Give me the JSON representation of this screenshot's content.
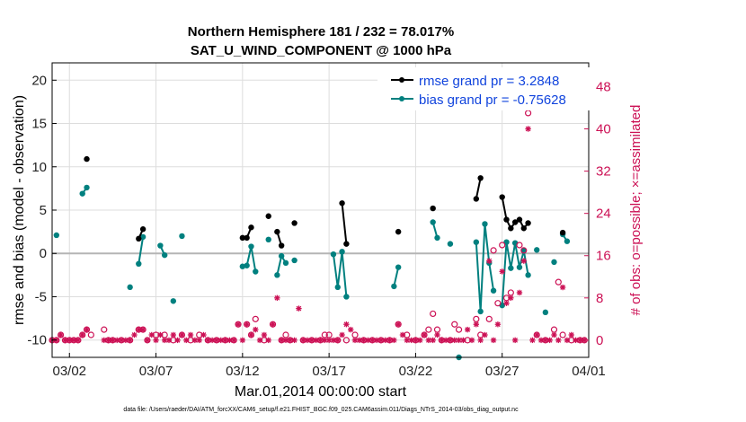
{
  "chart_data": {
    "type": "line",
    "title_line1": "Northern Hemisphere 181 / 232 = 78.017%",
    "title_line2": "SAT_U_WIND_COMPONENT @ 1000 hPa",
    "xlabel": "Mar.01,2014 00:00:00 start",
    "ylabel": "rmse and bias (model - observation)",
    "ylabel_right": "# of obs: o=possible; ×=assimilated",
    "footer": "data file: /Users/raeder/DAI/ATM_forcXX/CAM6_setup/f.e21.FHIST_BGC.f09_025.CAM6assim.011/Diags_NTrS_2014-03/obs_diag_output.nc",
    "xlim": [
      0.5,
      31.5
    ],
    "ylim": [
      -12,
      22
    ],
    "ylim_right": [
      -3.25,
      52.5
    ],
    "x_ticks": [
      1.5,
      6.5,
      11.5,
      16.5,
      21.5,
      26.5,
      31.5
    ],
    "x_tick_labels": [
      "03/02",
      "03/07",
      "03/12",
      "03/17",
      "03/22",
      "03/27",
      "04/01"
    ],
    "y_ticks": [
      -10,
      -5,
      0,
      5,
      10,
      15,
      20
    ],
    "y_ticks_right": [
      0,
      8,
      16,
      24,
      32,
      40,
      48
    ],
    "grid": true,
    "zero_line": true,
    "legend_position": "top-right",
    "colors": {
      "rmse": "#000000",
      "bias": "#00807f",
      "obs": "#cc1155",
      "grid": "#dddddd",
      "zero": "#b5b5b5",
      "legend_text": "#1144dd"
    },
    "series": [
      {
        "name": "rmse grand pr = 3.2848",
        "values": [
          [
            2.5,
            10.9
          ],
          [
            5.5,
            1.7
          ],
          [
            5.75,
            2.8
          ],
          [
            11.5,
            1.8
          ],
          [
            11.75,
            1.8
          ],
          [
            12.0,
            3.0
          ],
          [
            13.0,
            4.3
          ],
          [
            13.5,
            2.5
          ],
          [
            13.75,
            0.9
          ],
          [
            14.5,
            3.5
          ],
          [
            17.25,
            5.8
          ],
          [
            17.5,
            1.1
          ],
          [
            20.5,
            2.5
          ],
          [
            22.5,
            5.2
          ],
          [
            25.0,
            6.3
          ],
          [
            25.25,
            8.7
          ],
          [
            26.5,
            6.5
          ],
          [
            26.75,
            3.9
          ],
          [
            27.0,
            2.9
          ],
          [
            27.25,
            3.6
          ],
          [
            27.5,
            3.9
          ],
          [
            27.75,
            2.9
          ],
          [
            28.0,
            3.5
          ],
          [
            30.0,
            2.4
          ]
        ]
      },
      {
        "name": "bias grand pr = -0.75628",
        "values": [
          [
            0.75,
            2.1
          ],
          [
            2.25,
            6.9
          ],
          [
            2.5,
            7.6
          ],
          [
            5.0,
            -3.9
          ],
          [
            5.5,
            -1.2
          ],
          [
            5.75,
            1.9
          ],
          [
            6.75,
            0.9
          ],
          [
            7.0,
            -0.2
          ],
          [
            7.5,
            -5.5
          ],
          [
            8.0,
            2.0
          ],
          [
            11.5,
            -1.5
          ],
          [
            11.75,
            -1.4
          ],
          [
            12.0,
            0.8
          ],
          [
            12.25,
            -2.1
          ],
          [
            13.0,
            1.6
          ],
          [
            13.5,
            -2.5
          ],
          [
            13.75,
            -0.3
          ],
          [
            14.0,
            -1.1
          ],
          [
            14.5,
            -0.8
          ],
          [
            16.75,
            -0.1
          ],
          [
            17.0,
            -3.9
          ],
          [
            17.25,
            0.2
          ],
          [
            17.5,
            -5.0
          ],
          [
            20.25,
            -3.8
          ],
          [
            20.5,
            -1.6
          ],
          [
            22.5,
            3.6
          ],
          [
            22.75,
            1.8
          ],
          [
            23.5,
            1.1
          ],
          [
            24.0,
            -12.0
          ],
          [
            25.0,
            1.3
          ],
          [
            25.25,
            -6.7
          ],
          [
            25.5,
            3.4
          ],
          [
            25.75,
            -1.1
          ],
          [
            26.0,
            -4.3
          ],
          [
            26.5,
            -6.0
          ],
          [
            26.75,
            1.3
          ],
          [
            27.0,
            -1.7
          ],
          [
            27.25,
            1.2
          ],
          [
            27.5,
            -1.6
          ],
          [
            27.75,
            0.3
          ],
          [
            28.0,
            -2.5
          ],
          [
            28.5,
            0.4
          ],
          [
            29.0,
            -6.8
          ],
          [
            29.5,
            -1.0
          ],
          [
            30.0,
            2.2
          ],
          [
            30.25,
            1.4
          ]
        ]
      },
      {
        "name": "possible",
        "axis": "right",
        "marker": "o",
        "values": [
          [
            0.5,
            0
          ],
          [
            0.75,
            0
          ],
          [
            1.0,
            1
          ],
          [
            1.25,
            0
          ],
          [
            1.5,
            0
          ],
          [
            1.75,
            0
          ],
          [
            2.0,
            0
          ],
          [
            2.25,
            1
          ],
          [
            2.5,
            2
          ],
          [
            2.75,
            1
          ],
          [
            3.5,
            2
          ],
          [
            3.75,
            0
          ],
          [
            4.0,
            0
          ],
          [
            4.5,
            0
          ],
          [
            5.0,
            0
          ],
          [
            5.5,
            2
          ],
          [
            5.75,
            2
          ],
          [
            6.0,
            0
          ],
          [
            6.5,
            1
          ],
          [
            7.0,
            1
          ],
          [
            7.5,
            0
          ],
          [
            8.0,
            1
          ],
          [
            8.5,
            0
          ],
          [
            9.0,
            1
          ],
          [
            9.5,
            0
          ],
          [
            10.0,
            0
          ],
          [
            10.5,
            0
          ],
          [
            11.0,
            0
          ],
          [
            11.25,
            3
          ],
          [
            11.75,
            3
          ],
          [
            12.0,
            1
          ],
          [
            12.25,
            4
          ],
          [
            12.75,
            0
          ],
          [
            13.25,
            3
          ],
          [
            13.75,
            0
          ],
          [
            14.0,
            1
          ],
          [
            14.25,
            0
          ],
          [
            15.0,
            0
          ],
          [
            15.5,
            0
          ],
          [
            16.0,
            0
          ],
          [
            16.25,
            1
          ],
          [
            16.5,
            1
          ],
          [
            17.0,
            0
          ],
          [
            17.5,
            0
          ],
          [
            18.0,
            1
          ],
          [
            18.5,
            0
          ],
          [
            19.0,
            0
          ],
          [
            19.5,
            0
          ],
          [
            20.0,
            0
          ],
          [
            20.5,
            3
          ],
          [
            21.0,
            1
          ],
          [
            21.5,
            0
          ],
          [
            22.0,
            1
          ],
          [
            22.25,
            2
          ],
          [
            22.5,
            5
          ],
          [
            22.75,
            2
          ],
          [
            23.0,
            0
          ],
          [
            23.5,
            0
          ],
          [
            23.75,
            3
          ],
          [
            24.0,
            2
          ],
          [
            24.5,
            0
          ],
          [
            25.0,
            4
          ],
          [
            25.25,
            1
          ],
          [
            25.75,
            4
          ],
          [
            26.0,
            17
          ],
          [
            26.25,
            7
          ],
          [
            26.5,
            18
          ],
          [
            26.75,
            8
          ],
          [
            27.0,
            9
          ],
          [
            27.5,
            18
          ],
          [
            27.75,
            17
          ],
          [
            28.0,
            43
          ],
          [
            28.5,
            1
          ],
          [
            29.0,
            0
          ],
          [
            29.5,
            2
          ],
          [
            29.75,
            11
          ],
          [
            30.0,
            1
          ],
          [
            30.5,
            0
          ],
          [
            31.0,
            0
          ],
          [
            31.25,
            0
          ]
        ]
      },
      {
        "name": "assimilated",
        "axis": "right",
        "marker": "x",
        "values": [
          [
            0.5,
            0
          ],
          [
            0.75,
            0
          ],
          [
            1.0,
            1
          ],
          [
            1.25,
            0
          ],
          [
            1.5,
            0
          ],
          [
            1.75,
            0
          ],
          [
            2.0,
            0
          ],
          [
            2.25,
            1
          ],
          [
            2.5,
            2
          ],
          [
            3.5,
            0
          ],
          [
            3.75,
            0
          ],
          [
            4.0,
            0
          ],
          [
            4.25,
            0
          ],
          [
            4.5,
            0
          ],
          [
            4.75,
            0
          ],
          [
            5.0,
            0
          ],
          [
            5.25,
            1
          ],
          [
            5.5,
            2
          ],
          [
            5.75,
            2
          ],
          [
            6.0,
            0
          ],
          [
            6.25,
            1
          ],
          [
            6.5,
            0
          ],
          [
            6.75,
            1
          ],
          [
            7.0,
            0
          ],
          [
            7.25,
            0
          ],
          [
            7.5,
            1
          ],
          [
            7.75,
            0
          ],
          [
            8.0,
            1
          ],
          [
            8.25,
            0
          ],
          [
            8.5,
            1
          ],
          [
            8.75,
            0
          ],
          [
            9.0,
            0
          ],
          [
            9.25,
            1
          ],
          [
            9.5,
            0
          ],
          [
            9.75,
            0
          ],
          [
            10.0,
            0
          ],
          [
            10.25,
            0
          ],
          [
            10.5,
            0
          ],
          [
            10.75,
            0
          ],
          [
            11.0,
            0
          ],
          [
            11.25,
            3
          ],
          [
            11.5,
            0
          ],
          [
            11.75,
            3
          ],
          [
            12.0,
            1
          ],
          [
            12.25,
            2
          ],
          [
            12.5,
            0
          ],
          [
            12.75,
            1
          ],
          [
            13.0,
            0
          ],
          [
            13.25,
            3
          ],
          [
            13.5,
            8
          ],
          [
            13.75,
            0
          ],
          [
            14.0,
            0
          ],
          [
            14.25,
            0
          ],
          [
            14.5,
            0
          ],
          [
            14.75,
            6
          ],
          [
            15.0,
            0
          ],
          [
            15.25,
            0
          ],
          [
            15.5,
            0
          ],
          [
            15.75,
            0
          ],
          [
            16.0,
            0
          ],
          [
            16.25,
            0
          ],
          [
            16.5,
            0
          ],
          [
            16.75,
            0
          ],
          [
            17.0,
            0
          ],
          [
            17.25,
            1
          ],
          [
            17.5,
            3
          ],
          [
            17.75,
            2
          ],
          [
            18.0,
            0
          ],
          [
            18.25,
            0
          ],
          [
            18.5,
            0
          ],
          [
            18.75,
            0
          ],
          [
            19.0,
            0
          ],
          [
            19.25,
            0
          ],
          [
            19.5,
            0
          ],
          [
            19.75,
            0
          ],
          [
            20.0,
            0
          ],
          [
            20.25,
            0
          ],
          [
            20.5,
            3
          ],
          [
            20.75,
            1
          ],
          [
            21.0,
            0
          ],
          [
            21.25,
            0
          ],
          [
            21.5,
            0
          ],
          [
            21.75,
            0
          ],
          [
            22.0,
            1
          ],
          [
            22.25,
            0
          ],
          [
            22.5,
            0
          ],
          [
            22.75,
            1
          ],
          [
            23.0,
            0
          ],
          [
            23.25,
            0
          ],
          [
            23.5,
            0
          ],
          [
            23.75,
            0
          ],
          [
            24.0,
            0
          ],
          [
            24.25,
            0
          ],
          [
            24.5,
            2
          ],
          [
            24.75,
            0
          ],
          [
            25.0,
            3
          ],
          [
            25.25,
            0
          ],
          [
            25.5,
            1
          ],
          [
            25.75,
            15
          ],
          [
            26.0,
            0
          ],
          [
            26.25,
            3
          ],
          [
            26.5,
            13
          ],
          [
            26.75,
            7
          ],
          [
            27.0,
            8
          ],
          [
            27.25,
            0
          ],
          [
            27.5,
            9
          ],
          [
            27.75,
            15
          ],
          [
            28.0,
            40
          ],
          [
            28.25,
            0
          ],
          [
            28.5,
            1
          ],
          [
            28.75,
            0
          ],
          [
            29.0,
            0
          ],
          [
            29.25,
            0
          ],
          [
            29.5,
            1
          ],
          [
            29.75,
            0
          ],
          [
            30.0,
            10
          ],
          [
            30.25,
            0
          ],
          [
            30.5,
            1
          ],
          [
            30.75,
            0
          ],
          [
            31.0,
            0
          ],
          [
            31.25,
            0
          ]
        ]
      }
    ]
  }
}
